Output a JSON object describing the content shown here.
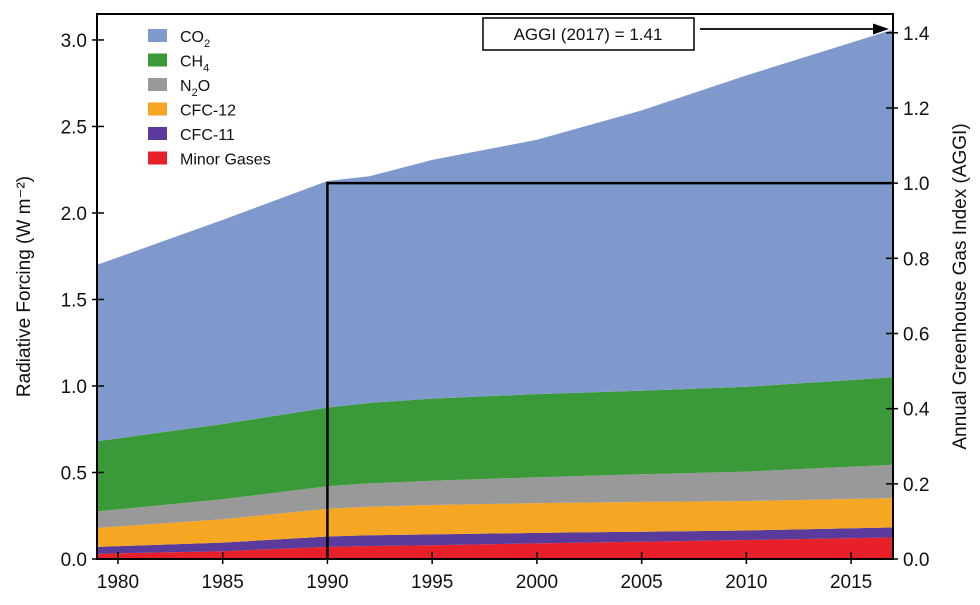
{
  "chart_data": {
    "type": "area",
    "stacked": true,
    "title": "",
    "xlabel": "",
    "ylabel": "Radiative Forcing (W m⁻²)",
    "y2label": "Annual Greenhouse Gas Index (AGGI)",
    "xlim": [
      1979,
      2017
    ],
    "ylim": [
      0,
      3.15
    ],
    "y2lim": [
      0,
      1.45
    ],
    "x_ticks": [
      1980,
      1985,
      1990,
      1995,
      2000,
      2005,
      2010,
      2015
    ],
    "y_ticks": [
      0.0,
      0.5,
      1.0,
      1.5,
      2.0,
      2.5,
      3.0
    ],
    "y2_ticks": [
      0.0,
      0.2,
      0.4,
      0.6,
      0.8,
      1.0,
      1.2,
      1.4
    ],
    "x_tick_labels": [
      "1980",
      "1985",
      "1990",
      "1995",
      "2000",
      "2005",
      "2010",
      "2015"
    ],
    "y_tick_labels": [
      "0.0",
      "0.5",
      "1.0",
      "1.5",
      "2.0",
      "2.5",
      "3.0"
    ],
    "y2_tick_labels": [
      "0.0",
      "0.2",
      "0.4",
      "0.6",
      "0.8",
      "1.0",
      "1.2",
      "1.4"
    ],
    "x": [
      1979,
      1985,
      1990,
      1992,
      1995,
      2000,
      2005,
      2010,
      2017
    ],
    "series": [
      {
        "name": "Minor Gases",
        "legend": "Minor Gases",
        "color": "#e8202a",
        "values": [
          0.03,
          0.045,
          0.07,
          0.075,
          0.08,
          0.09,
          0.1,
          0.11,
          0.125
        ]
      },
      {
        "name": "CFC-11",
        "legend": "CFC-11",
        "color": "#5a3a9a",
        "values": [
          0.04,
          0.05,
          0.06,
          0.062,
          0.062,
          0.061,
          0.058,
          0.055,
          0.057
        ]
      },
      {
        "name": "CFC-12",
        "legend": "CFC-12",
        "color": "#f5a623",
        "values": [
          0.11,
          0.135,
          0.16,
          0.165,
          0.17,
          0.172,
          0.172,
          0.17,
          0.17
        ]
      },
      {
        "name": "N2O",
        "legend_main": "N",
        "legend_sub": "2",
        "legend_tail": "O",
        "color": "#999999",
        "values": [
          0.095,
          0.115,
          0.13,
          0.135,
          0.14,
          0.15,
          0.16,
          0.17,
          0.193
        ]
      },
      {
        "name": "CH4",
        "legend_main": "CH",
        "legend_sub": "4",
        "legend_tail": "",
        "color": "#3a9a3a",
        "values": [
          0.405,
          0.435,
          0.455,
          0.465,
          0.475,
          0.48,
          0.483,
          0.49,
          0.505
        ]
      },
      {
        "name": "CO2",
        "legend_main": "CO",
        "legend_sub": "2",
        "legend_tail": "",
        "color": "#8099cc",
        "values": [
          1.02,
          1.18,
          1.31,
          1.31,
          1.38,
          1.47,
          1.62,
          1.8,
          2.01
        ]
      }
    ],
    "legend_order": [
      "CO2",
      "CH4",
      "N2O",
      "CFC-12",
      "CFC-11",
      "Minor Gases"
    ],
    "legend_position": "top-left",
    "reference": {
      "year": 1990,
      "aggi": 1.0
    },
    "annotation": {
      "text": "AGGI (2017) = 1.41",
      "aggi": 1.41
    }
  }
}
